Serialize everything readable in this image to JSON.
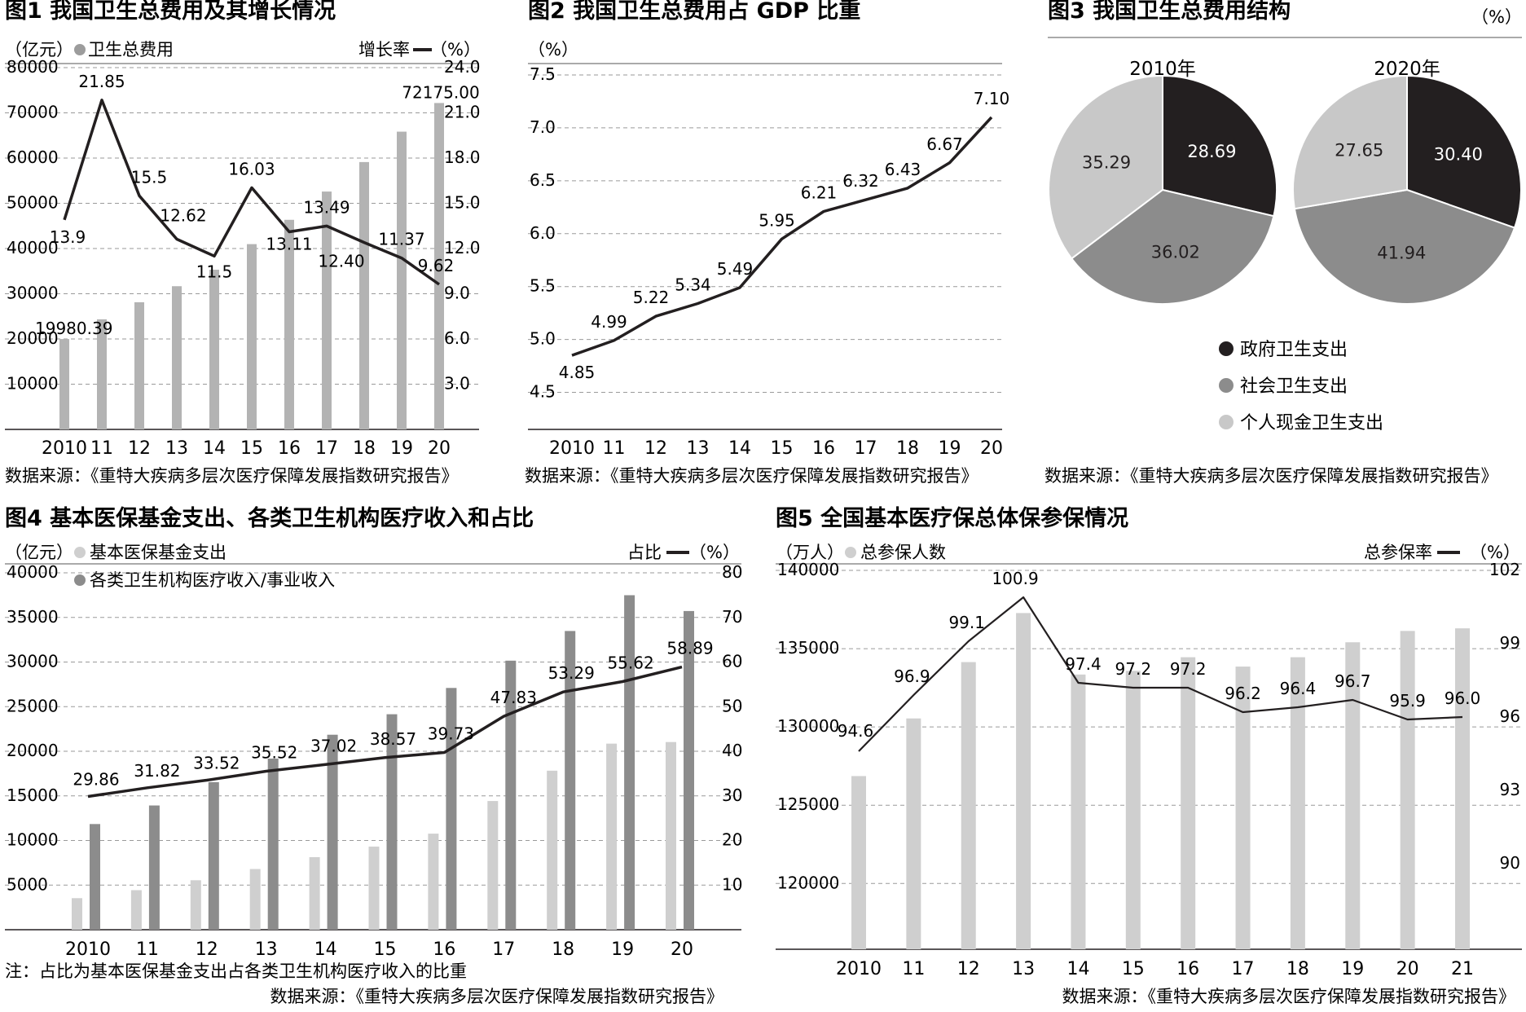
{
  "source_label": "数据来源：《重特大疾病多层次医疗保障发展指数研究报告》",
  "note": "注：占比为基本医保基金支出占各类卫生机构医疗收入的比重",
  "chart_data": [
    {
      "id": "fig1",
      "type": "bar+line",
      "title": "图1 我国卫生总费用及其增长情况",
      "left_unit": "（亿元）",
      "right_unit": "（%）",
      "bar_legend": "卫生总费用",
      "line_legend": "增长率",
      "categories": [
        "2010",
        "11",
        "12",
        "13",
        "14",
        "15",
        "16",
        "17",
        "18",
        "19",
        "20"
      ],
      "bar_values": [
        19980.39,
        24345,
        28119,
        31669,
        35312,
        40975,
        46345,
        52598,
        59122,
        65841,
        72175.0
      ],
      "bar_value_labels": [
        "19980.39",
        "",
        "",
        "",
        "",
        "",
        "",
        "",
        "",
        "",
        "72175.00"
      ],
      "line_values": [
        13.9,
        21.85,
        15.5,
        12.62,
        11.5,
        16.03,
        13.11,
        13.49,
        12.4,
        11.37,
        9.62
      ],
      "line_value_labels": [
        "13.9",
        "21.85",
        "15.5",
        "12.62",
        "11.5",
        "16.03",
        "13.11",
        "13.49",
        "12.40",
        "11.37",
        "9.62"
      ],
      "left_axis_ticks": [
        "80000",
        "70000",
        "60000",
        "50000",
        "40000",
        "30000",
        "20000",
        "10000"
      ],
      "left_axis_values": [
        80000,
        70000,
        60000,
        50000,
        40000,
        30000,
        20000,
        10000
      ],
      "right_axis_ticks": [
        "24.0",
        "21.0",
        "18.0",
        "15.0",
        "12.0",
        "9.0",
        "6.0",
        "3.0"
      ],
      "right_axis_values": [
        24,
        21,
        18,
        15,
        12,
        9,
        6,
        3
      ],
      "left_range": [
        0,
        80000
      ],
      "right_range": [
        0,
        24
      ],
      "grid": true,
      "source": "数据来源：《重特大疾病多层次医疗保障发展指数研究报告》"
    },
    {
      "id": "fig2",
      "type": "line",
      "title": "图2 我国卫生总费用占 GDP 比重",
      "unit": "（%）",
      "categories": [
        "2010",
        "11",
        "12",
        "13",
        "14",
        "15",
        "16",
        "17",
        "18",
        "19",
        "20"
      ],
      "values": [
        4.85,
        4.99,
        5.22,
        5.34,
        5.49,
        5.95,
        6.21,
        6.32,
        6.43,
        6.67,
        7.1
      ],
      "value_labels": [
        "4.85",
        "4.99",
        "5.22",
        "5.34",
        "5.49",
        "5.95",
        "6.21",
        "6.32",
        "6.43",
        "6.67",
        "7.10"
      ],
      "axis_ticks": [
        "7.5",
        "7.0",
        "6.5",
        "6.0",
        "5.5",
        "5.0",
        "4.5"
      ],
      "axis_values": [
        7.5,
        7.0,
        6.5,
        6.0,
        5.5,
        5.0,
        4.5
      ],
      "range": [
        4.15,
        7.5
      ],
      "grid": true,
      "source": "数据来源：《重特大疾病多层次医疗保障发展指数研究报告》"
    },
    {
      "id": "fig3",
      "type": "pie",
      "title": "图3  我国卫生总费用结构",
      "unit": "（%）",
      "pies": [
        {
          "label": "2010年",
          "values": [
            28.69,
            36.02,
            35.29
          ],
          "value_labels": [
            "28.69",
            "36.02",
            "35.29"
          ]
        },
        {
          "label": "2020年",
          "values": [
            30.4,
            41.94,
            27.65
          ],
          "value_labels": [
            "30.40",
            "41.94",
            "27.65"
          ]
        }
      ],
      "legend": [
        "政府卫生支出",
        "社会卫生支出",
        "个人现金卫生支出"
      ],
      "colors": [
        "#231f20",
        "#8c8c8c",
        "#c8c8c8"
      ],
      "source": "数据来源：《重特大疾病多层次医疗保障发展指数研究报告》"
    },
    {
      "id": "fig4",
      "type": "bar+line",
      "title": "图4 基本医保基金支出、各类卫生机构医疗收入和占比",
      "left_unit": "（亿元）",
      "right_unit": "（%）",
      "series_legend": [
        "基本医保基金支出",
        "各类卫生机构医疗收入/事业收入"
      ],
      "line_legend": "占比",
      "categories": [
        "2010",
        "11",
        "12",
        "13",
        "14",
        "15",
        "16",
        "17",
        "18",
        "19",
        "20"
      ],
      "series": [
        {
          "name": "基本医保基金支出",
          "values": [
            3538,
            4431,
            5544,
            6801,
            8134,
            9313,
            10767,
            14422,
            17822,
            20854,
            21032
          ],
          "color": "#cfcfcf"
        },
        {
          "name": "各类卫生机构医疗收入/事业收入",
          "values": [
            11843,
            13923,
            16538,
            19177,
            21852,
            24149,
            27096,
            30154,
            33479,
            37490,
            35716
          ],
          "color": "#8c8c8c"
        }
      ],
      "line_values": [
        29.86,
        31.82,
        33.52,
        35.52,
        37.02,
        38.57,
        39.73,
        47.83,
        53.29,
        55.62,
        58.89
      ],
      "line_value_labels": [
        "29.86",
        "31.82",
        "33.52",
        "35.52",
        "37.02",
        "38.57",
        "39.73",
        "47.83",
        "53.29",
        "55.62",
        "58.89"
      ],
      "left_axis_ticks": [
        "40000",
        "35000",
        "30000",
        "25000",
        "20000",
        "15000",
        "10000",
        "5000"
      ],
      "left_axis_values": [
        40000,
        35000,
        30000,
        25000,
        20000,
        15000,
        10000,
        5000
      ],
      "right_axis_ticks": [
        "80",
        "70",
        "60",
        "50",
        "40",
        "30",
        "20",
        "10"
      ],
      "right_axis_values": [
        80,
        70,
        60,
        50,
        40,
        30,
        20,
        10
      ],
      "left_range": [
        0,
        40000
      ],
      "right_range": [
        0,
        80
      ],
      "grid": true,
      "note": "注：占比为基本医保基金支出占各类卫生机构医疗收入的比重",
      "source": "数据来源：《重特大疾病多层次医疗保障发展指数研究报告》"
    },
    {
      "id": "fig5",
      "type": "bar+line",
      "title": "图5  全国基本医疗保总体保参保情况",
      "left_unit": "（万人）",
      "right_unit": "（%）",
      "bar_legend": "总参保人数",
      "line_legend": "总参保率",
      "categories": [
        "2010",
        "11",
        "12",
        "13",
        "14",
        "15",
        "16",
        "17",
        "18",
        "19",
        "20",
        "21"
      ],
      "bar_values": [
        126863,
        130543,
        134141,
        137273,
        133347,
        133582,
        134452,
        133855,
        134452,
        135407,
        136131,
        136297
      ],
      "line_values": [
        94.6,
        96.9,
        99.1,
        100.9,
        97.4,
        97.2,
        97.2,
        96.2,
        96.4,
        96.7,
        95.9,
        96.0
      ],
      "line_value_labels": [
        "94.6",
        "96.9",
        "99.1",
        "100.9",
        "97.4",
        "97.2",
        "97.2",
        "96.2",
        "96.4",
        "96.7",
        "95.9",
        "96.0"
      ],
      "left_axis_ticks": [
        "140000",
        "135000",
        "130000",
        "125000",
        "120000"
      ],
      "left_axis_values": [
        140000,
        135000,
        130000,
        125000,
        120000
      ],
      "right_axis_ticks": [
        "102",
        "99",
        "96",
        "93",
        "90"
      ],
      "right_axis_values": [
        102,
        99,
        96,
        93,
        90
      ],
      "left_range": [
        115800,
        140000
      ],
      "right_range": [
        86.5,
        102
      ],
      "grid": true,
      "source": "数据来源：《重特大疾病多层次医疗保障发展指数研究报告》"
    }
  ]
}
